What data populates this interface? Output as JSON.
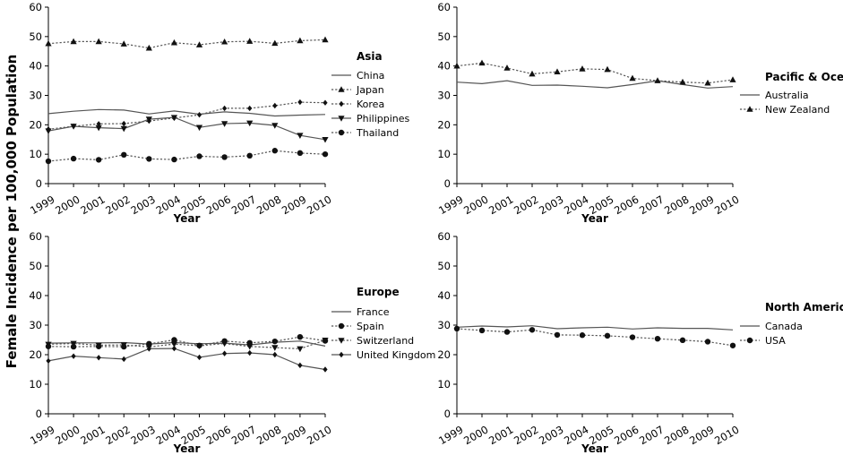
{
  "figure": {
    "ylabel": "Female Incidence per 100,000 Population"
  },
  "chart_data": [
    {
      "type": "line",
      "legend_title": "Asia",
      "xlabel": "Year",
      "ylim": [
        0,
        60
      ],
      "yticks": [
        0,
        10,
        20,
        30,
        40,
        50,
        60
      ],
      "x": [
        "1999",
        "2000",
        "2001",
        "2002",
        "2003",
        "2004",
        "2005",
        "2006",
        "2007",
        "2008",
        "2009",
        "2010"
      ],
      "legend": "right",
      "series": [
        {
          "name": "China",
          "marker": "none",
          "dash": "solid",
          "values": [
            23.8,
            24.6,
            25.2,
            25.0,
            23.7,
            24.7,
            23.6,
            24.4,
            23.9,
            23.0,
            23.3,
            23.5
          ]
        },
        {
          "name": "Japan",
          "marker": "triangle-up",
          "dash": "dotted",
          "values": [
            47.6,
            48.3,
            48.3,
            47.5,
            46.1,
            47.9,
            47.2,
            48.2,
            48.4,
            47.7,
            48.6,
            48.9
          ]
        },
        {
          "name": "Korea",
          "marker": "diamond",
          "dash": "dotted",
          "values": [
            18.5,
            19.5,
            20.3,
            20.4,
            21.3,
            22.3,
            23.4,
            25.6,
            25.6,
            26.5,
            27.7,
            27.5
          ]
        },
        {
          "name": "Philippines",
          "marker": "triangle-down",
          "dash": "solid",
          "values": [
            17.9,
            19.5,
            19.0,
            18.7,
            21.9,
            22.5,
            19.1,
            20.4,
            20.6,
            19.8,
            16.4,
            15.0
          ]
        },
        {
          "name": "Thailand",
          "marker": "circle",
          "dash": "dotted",
          "values": [
            7.6,
            8.5,
            8.1,
            9.8,
            8.4,
            8.2,
            9.3,
            9.0,
            9.5,
            11.2,
            10.4,
            10.0
          ]
        }
      ]
    },
    {
      "type": "line",
      "legend_title": "Pacific & Oceania",
      "xlabel": "Year",
      "ylim": [
        0,
        60
      ],
      "yticks": [
        0,
        10,
        20,
        30,
        40,
        50,
        60
      ],
      "x": [
        "1999",
        "2000",
        "2001",
        "2002",
        "2003",
        "2004",
        "2005",
        "2006",
        "2007",
        "2008",
        "2009",
        "2010"
      ],
      "legend": "right",
      "series": [
        {
          "name": "Australia",
          "marker": "none",
          "dash": "solid",
          "values": [
            34.5,
            34.0,
            35.0,
            33.4,
            33.5,
            33.1,
            32.6,
            33.7,
            35.0,
            33.7,
            32.5,
            33.0
          ]
        },
        {
          "name": "New Zealand",
          "marker": "triangle-up",
          "dash": "dotted",
          "values": [
            40.0,
            41.0,
            39.3,
            37.3,
            38.0,
            39.0,
            38.8,
            35.8,
            35.0,
            34.5,
            34.2,
            35.3
          ]
        }
      ]
    },
    {
      "type": "line",
      "legend_title": "Europe",
      "xlabel": "Year",
      "ylim": [
        0,
        60
      ],
      "yticks": [
        0,
        10,
        20,
        30,
        40,
        50,
        60
      ],
      "x": [
        "1999",
        "2000",
        "2001",
        "2002",
        "2003",
        "2004",
        "2005",
        "2006",
        "2007",
        "2008",
        "2009",
        "2010"
      ],
      "legend": "right",
      "series": [
        {
          "name": "France",
          "marker": "none",
          "dash": "solid",
          "values": [
            23.9,
            24.0,
            24.0,
            24.1,
            23.6,
            24.1,
            23.7,
            23.9,
            23.3,
            24.2,
            24.6,
            22.9
          ]
        },
        {
          "name": "Spain",
          "marker": "circle",
          "dash": "dotted",
          "values": [
            22.8,
            22.7,
            22.8,
            22.7,
            23.7,
            25.0,
            23.1,
            24.6,
            24.0,
            24.5,
            26.0,
            24.7
          ]
        },
        {
          "name": "Switzerland",
          "marker": "triangle-down",
          "dash": "dotted",
          "values": [
            23.5,
            23.8,
            23.2,
            23.3,
            22.6,
            23.6,
            23.0,
            23.8,
            22.8,
            22.4,
            22.0,
            24.9
          ]
        },
        {
          "name": "United Kingdom",
          "marker": "diamond",
          "dash": "solid",
          "values": [
            17.9,
            19.5,
            19.0,
            18.5,
            22.0,
            22.1,
            19.1,
            20.4,
            20.6,
            20.0,
            16.4,
            15.0
          ]
        }
      ]
    },
    {
      "type": "line",
      "legend_title": "North America",
      "xlabel": "Year",
      "ylim": [
        0,
        60
      ],
      "yticks": [
        0,
        10,
        20,
        30,
        40,
        50,
        60
      ],
      "x": [
        "1999",
        "2000",
        "2001",
        "2002",
        "2003",
        "2004",
        "2005",
        "2006",
        "2007",
        "2008",
        "2009",
        "2010"
      ],
      "legend": "right",
      "series": [
        {
          "name": "Canada",
          "marker": "none",
          "dash": "solid",
          "values": [
            29.3,
            29.7,
            29.4,
            29.8,
            28.8,
            29.1,
            29.3,
            28.7,
            29.1,
            28.9,
            28.9,
            28.4
          ]
        },
        {
          "name": "USA",
          "marker": "circle",
          "dash": "dotted",
          "values": [
            28.8,
            28.2,
            27.7,
            28.4,
            26.7,
            26.6,
            26.4,
            25.9,
            25.4,
            24.9,
            24.4,
            23.1
          ]
        }
      ]
    }
  ]
}
